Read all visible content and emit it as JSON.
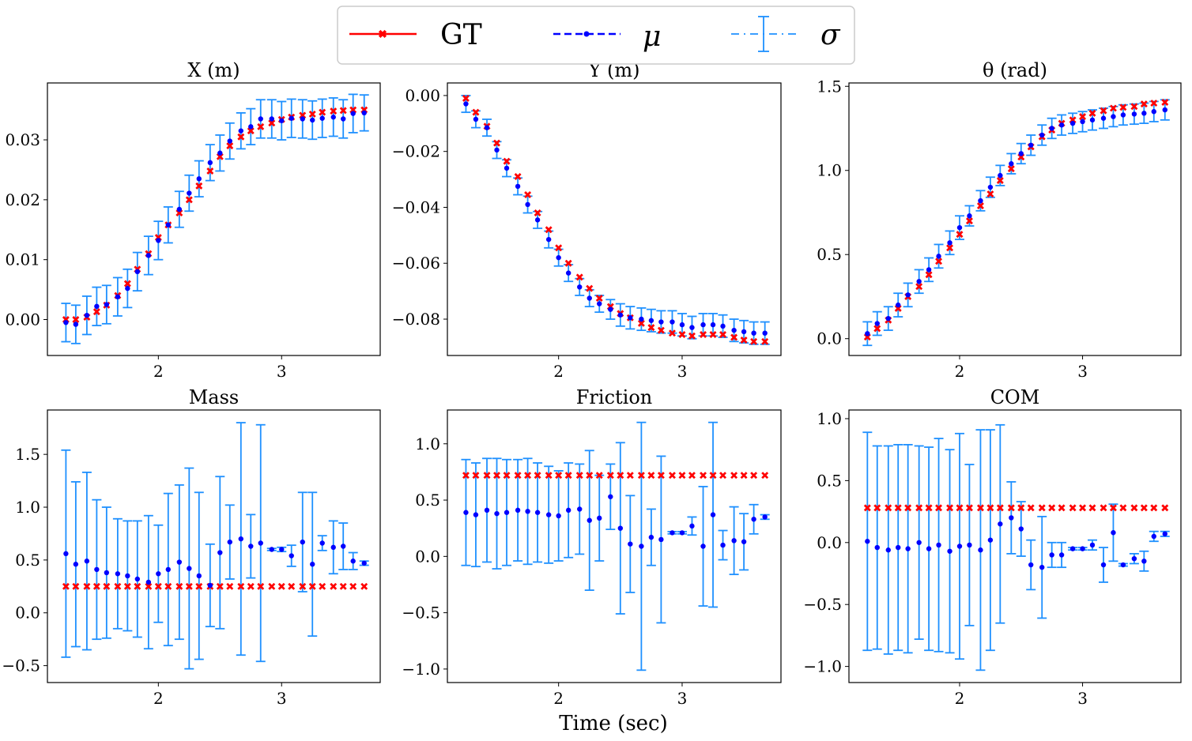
{
  "figure": {
    "xlabel": "Time (sec)"
  },
  "legend": {
    "entries": [
      {
        "label": "GT",
        "color": "#ff0000",
        "style": "solid-x-marker"
      },
      {
        "label": "μ",
        "color": "#0000ff",
        "style": "dashed-dot-marker"
      },
      {
        "label": "σ",
        "color": "#1e90ff",
        "style": "dashdot-errorbar"
      }
    ]
  },
  "chart_data": [
    {
      "type": "errorbar",
      "title": "X (m)",
      "xlim": [
        1.1,
        3.8
      ],
      "ylim": [
        -0.006,
        0.0395
      ],
      "xticks": [
        2,
        3
      ],
      "xtick_labels": [
        "2",
        "3"
      ],
      "yticks": [
        0.0,
        0.01,
        0.02,
        0.03
      ],
      "ytick_labels": [
        "0.00",
        "0.01",
        "0.02",
        "0.03"
      ],
      "x": [
        1.25,
        1.33,
        1.42,
        1.5,
        1.58,
        1.67,
        1.75,
        1.83,
        1.92,
        2.0,
        2.08,
        2.17,
        2.25,
        2.33,
        2.42,
        2.5,
        2.58,
        2.67,
        2.75,
        2.83,
        2.92,
        3.0,
        3.08,
        3.17,
        3.25,
        3.33,
        3.42,
        3.5,
        3.58,
        3.67
      ],
      "gt": [
        0.0,
        0.0,
        0.0004,
        0.0013,
        0.0024,
        0.004,
        0.006,
        0.0084,
        0.011,
        0.0137,
        0.0158,
        0.0178,
        0.02,
        0.0223,
        0.0248,
        0.0272,
        0.029,
        0.0305,
        0.0315,
        0.0322,
        0.0328,
        0.0334,
        0.0338,
        0.0341,
        0.0343,
        0.0346,
        0.0348,
        0.0349,
        0.035,
        0.035
      ],
      "mu": [
        -0.0005,
        -0.0008,
        0.0007,
        0.0022,
        0.0025,
        0.0038,
        0.0052,
        0.008,
        0.0107,
        0.0132,
        0.0158,
        0.0184,
        0.0211,
        0.0235,
        0.0262,
        0.0278,
        0.0298,
        0.0315,
        0.0322,
        0.0335,
        0.0335,
        0.0332,
        0.0336,
        0.0335,
        0.0333,
        0.0336,
        0.0338,
        0.0335,
        0.0344,
        0.0345
      ],
      "sigma": [
        0.0032,
        0.0032,
        0.0032,
        0.0032,
        0.0032,
        0.0032,
        0.0032,
        0.0032,
        0.0032,
        0.0032,
        0.003,
        0.003,
        0.003,
        0.003,
        0.003,
        0.003,
        0.003,
        0.003,
        0.003,
        0.0032,
        0.0032,
        0.0032,
        0.0032,
        0.0032,
        0.0032,
        0.0032,
        0.0032,
        0.0032,
        0.0032,
        0.003
      ]
    },
    {
      "type": "errorbar",
      "title": "Y (m)",
      "xlim": [
        1.1,
        3.8
      ],
      "ylim": [
        -0.093,
        0.0045
      ],
      "xticks": [
        2,
        3
      ],
      "xtick_labels": [
        "2",
        "3"
      ],
      "yticks": [
        0.0,
        -0.02,
        -0.04,
        -0.06,
        -0.08
      ],
      "ytick_labels": [
        "0.00",
        "−0.02",
        "−0.04",
        "−0.06",
        "−0.08"
      ],
      "x": [
        1.25,
        1.33,
        1.42,
        1.5,
        1.58,
        1.67,
        1.75,
        1.83,
        1.92,
        2.0,
        2.08,
        2.17,
        2.25,
        2.33,
        2.42,
        2.5,
        2.58,
        2.67,
        2.75,
        2.83,
        2.92,
        3.0,
        3.08,
        3.17,
        3.25,
        3.33,
        3.42,
        3.5,
        3.58,
        3.67
      ],
      "gt": [
        -0.001,
        -0.006,
        -0.011,
        -0.017,
        -0.0235,
        -0.029,
        -0.0355,
        -0.042,
        -0.048,
        -0.0545,
        -0.06,
        -0.065,
        -0.069,
        -0.0725,
        -0.0755,
        -0.078,
        -0.0795,
        -0.0815,
        -0.083,
        -0.084,
        -0.085,
        -0.0855,
        -0.086,
        -0.0855,
        -0.0855,
        -0.0855,
        -0.0865,
        -0.0875,
        -0.088,
        -0.088
      ],
      "mu": [
        -0.003,
        -0.0085,
        -0.0115,
        -0.0195,
        -0.026,
        -0.0325,
        -0.039,
        -0.0445,
        -0.0515,
        -0.058,
        -0.0635,
        -0.0685,
        -0.0725,
        -0.0745,
        -0.0765,
        -0.0785,
        -0.0795,
        -0.08,
        -0.0805,
        -0.081,
        -0.081,
        -0.082,
        -0.083,
        -0.082,
        -0.082,
        -0.0825,
        -0.084,
        -0.0845,
        -0.085,
        -0.085
      ],
      "sigma": [
        0.003,
        0.003,
        0.003,
        0.003,
        0.003,
        0.003,
        0.003,
        0.003,
        0.003,
        0.003,
        0.003,
        0.003,
        0.003,
        0.003,
        0.0035,
        0.004,
        0.004,
        0.004,
        0.004,
        0.004,
        0.004,
        0.004,
        0.004,
        0.004,
        0.004,
        0.004,
        0.004,
        0.004,
        0.004,
        0.004
      ]
    },
    {
      "type": "errorbar",
      "title": "θ (rad)",
      "xlim": [
        1.1,
        3.8
      ],
      "ylim": [
        -0.1,
        1.52
      ],
      "xticks": [
        2,
        3
      ],
      "xtick_labels": [
        "2",
        "3"
      ],
      "yticks": [
        0.0,
        0.5,
        1.0,
        1.5
      ],
      "ytick_labels": [
        "0.0",
        "0.5",
        "1.0",
        "1.5"
      ],
      "x": [
        1.25,
        1.33,
        1.42,
        1.5,
        1.58,
        1.67,
        1.75,
        1.83,
        1.92,
        2.0,
        2.08,
        2.17,
        2.25,
        2.33,
        2.42,
        2.5,
        2.58,
        2.67,
        2.75,
        2.83,
        2.92,
        3.0,
        3.08,
        3.17,
        3.25,
        3.33,
        3.42,
        3.5,
        3.58,
        3.67
      ],
      "gt": [
        0.01,
        0.06,
        0.11,
        0.18,
        0.25,
        0.31,
        0.38,
        0.46,
        0.54,
        0.62,
        0.7,
        0.79,
        0.86,
        0.94,
        1.01,
        1.08,
        1.14,
        1.2,
        1.24,
        1.28,
        1.3,
        1.32,
        1.34,
        1.355,
        1.37,
        1.375,
        1.38,
        1.395,
        1.4,
        1.405
      ],
      "mu": [
        0.03,
        0.09,
        0.12,
        0.2,
        0.26,
        0.34,
        0.41,
        0.49,
        0.57,
        0.66,
        0.73,
        0.82,
        0.9,
        0.97,
        1.04,
        1.1,
        1.15,
        1.21,
        1.25,
        1.27,
        1.28,
        1.29,
        1.3,
        1.31,
        1.32,
        1.33,
        1.335,
        1.34,
        1.35,
        1.36
      ],
      "sigma": [
        0.07,
        0.07,
        0.07,
        0.07,
        0.07,
        0.07,
        0.07,
        0.07,
        0.07,
        0.07,
        0.06,
        0.06,
        0.06,
        0.06,
        0.06,
        0.06,
        0.06,
        0.06,
        0.06,
        0.06,
        0.06,
        0.06,
        0.06,
        0.06,
        0.06,
        0.06,
        0.06,
        0.06,
        0.06,
        0.06
      ]
    },
    {
      "type": "errorbar",
      "title": "Mass",
      "xlim": [
        1.1,
        3.8
      ],
      "ylim": [
        -0.66,
        1.92
      ],
      "xticks": [
        2,
        3
      ],
      "xtick_labels": [
        "2",
        "3"
      ],
      "yticks": [
        -0.5,
        0.0,
        0.5,
        1.0,
        1.5
      ],
      "ytick_labels": [
        "−0.5",
        "0.0",
        "0.5",
        "1.0",
        "1.5"
      ],
      "x": [
        1.25,
        1.33,
        1.42,
        1.5,
        1.58,
        1.67,
        1.75,
        1.83,
        1.92,
        2.0,
        2.08,
        2.17,
        2.25,
        2.33,
        2.42,
        2.5,
        2.58,
        2.67,
        2.75,
        2.83,
        2.92,
        3.0,
        3.08,
        3.17,
        3.25,
        3.33,
        3.42,
        3.5,
        3.58,
        3.67
      ],
      "gt": [
        0.25,
        0.25,
        0.25,
        0.25,
        0.25,
        0.25,
        0.25,
        0.25,
        0.25,
        0.25,
        0.25,
        0.25,
        0.25,
        0.25,
        0.25,
        0.25,
        0.25,
        0.25,
        0.25,
        0.25,
        0.25,
        0.25,
        0.25,
        0.25,
        0.25,
        0.25,
        0.25,
        0.25,
        0.25,
        0.25
      ],
      "mu": [
        0.56,
        0.46,
        0.49,
        0.41,
        0.38,
        0.37,
        0.35,
        0.32,
        0.29,
        0.37,
        0.41,
        0.48,
        0.42,
        0.35,
        0.26,
        0.57,
        0.67,
        0.7,
        0.63,
        0.66,
        0.6,
        0.6,
        0.54,
        0.67,
        0.46,
        0.66,
        0.62,
        0.63,
        0.49,
        0.47
      ],
      "sigma": [
        0.98,
        0.78,
        0.84,
        0.66,
        0.62,
        0.52,
        0.52,
        0.55,
        0.63,
        0.46,
        0.72,
        0.73,
        0.95,
        0.79,
        0.39,
        0.72,
        0.35,
        1.1,
        0.3,
        1.12,
        0.01,
        0.02,
        0.1,
        0.47,
        0.68,
        0.07,
        0.25,
        0.22,
        0.08,
        0.02
      ]
    },
    {
      "type": "errorbar",
      "title": "Friction",
      "xlim": [
        1.1,
        3.8
      ],
      "ylim": [
        -1.12,
        1.3
      ],
      "xticks": [
        2,
        3
      ],
      "xtick_labels": [
        "2",
        "3"
      ],
      "yticks": [
        -1.0,
        -0.5,
        0.0,
        0.5,
        1.0
      ],
      "ytick_labels": [
        "−1.0",
        "−0.5",
        "0.0",
        "0.5",
        "1.0"
      ],
      "x": [
        1.25,
        1.33,
        1.42,
        1.5,
        1.58,
        1.67,
        1.75,
        1.83,
        1.92,
        2.0,
        2.08,
        2.17,
        2.25,
        2.33,
        2.42,
        2.5,
        2.58,
        2.67,
        2.75,
        2.83,
        2.92,
        3.0,
        3.08,
        3.17,
        3.25,
        3.33,
        3.42,
        3.5,
        3.58,
        3.67
      ],
      "gt": [
        0.72,
        0.72,
        0.72,
        0.72,
        0.72,
        0.72,
        0.72,
        0.72,
        0.72,
        0.72,
        0.72,
        0.72,
        0.72,
        0.72,
        0.72,
        0.72,
        0.72,
        0.72,
        0.72,
        0.72,
        0.72,
        0.72,
        0.72,
        0.72,
        0.72,
        0.72,
        0.72,
        0.72,
        0.72,
        0.72
      ],
      "mu": [
        0.39,
        0.37,
        0.41,
        0.38,
        0.39,
        0.41,
        0.4,
        0.39,
        0.37,
        0.36,
        0.41,
        0.42,
        0.32,
        0.34,
        0.53,
        0.25,
        0.11,
        0.09,
        0.17,
        0.15,
        0.21,
        0.21,
        0.27,
        0.09,
        0.37,
        0.1,
        0.14,
        0.13,
        0.33,
        0.35
      ],
      "sigma": [
        0.47,
        0.46,
        0.46,
        0.49,
        0.47,
        0.45,
        0.47,
        0.44,
        0.43,
        0.4,
        0.42,
        0.4,
        0.62,
        0.38,
        0.29,
        0.76,
        0.43,
        1.1,
        0.25,
        0.74,
        0.01,
        0.01,
        0.08,
        0.53,
        0.82,
        0.13,
        0.3,
        0.25,
        0.13,
        0.02
      ]
    },
    {
      "type": "errorbar",
      "title": "COM",
      "xlim": [
        1.1,
        3.8
      ],
      "ylim": [
        -1.13,
        1.07
      ],
      "xticks": [
        2,
        3
      ],
      "xtick_labels": [
        "2",
        "3"
      ],
      "yticks": [
        -1.0,
        -0.5,
        0.0,
        0.5,
        1.0
      ],
      "ytick_labels": [
        "−1.0",
        "−0.5",
        "0.0",
        "0.5",
        "1.0"
      ],
      "x": [
        1.25,
        1.33,
        1.42,
        1.5,
        1.58,
        1.67,
        1.75,
        1.83,
        1.92,
        2.0,
        2.08,
        2.17,
        2.25,
        2.33,
        2.42,
        2.5,
        2.58,
        2.67,
        2.75,
        2.83,
        2.92,
        3.0,
        3.08,
        3.17,
        3.25,
        3.33,
        3.42,
        3.5,
        3.58,
        3.67
      ],
      "gt": [
        0.28,
        0.28,
        0.28,
        0.28,
        0.28,
        0.28,
        0.28,
        0.28,
        0.28,
        0.28,
        0.28,
        0.28,
        0.28,
        0.28,
        0.28,
        0.28,
        0.28,
        0.28,
        0.28,
        0.28,
        0.28,
        0.28,
        0.28,
        0.28,
        0.28,
        0.28,
        0.28,
        0.28,
        0.28,
        0.28
      ],
      "mu": [
        0.01,
        -0.04,
        -0.06,
        -0.04,
        -0.05,
        0.0,
        -0.05,
        -0.02,
        -0.07,
        -0.03,
        -0.02,
        -0.06,
        0.02,
        0.15,
        0.2,
        0.11,
        -0.18,
        -0.2,
        -0.1,
        -0.1,
        -0.05,
        -0.05,
        -0.02,
        -0.18,
        0.08,
        -0.18,
        -0.13,
        -0.15,
        0.05,
        0.07
      ],
      "sigma": [
        0.88,
        0.82,
        0.84,
        0.83,
        0.84,
        0.78,
        0.82,
        0.86,
        0.82,
        0.91,
        0.65,
        0.97,
        0.89,
        0.8,
        0.29,
        0.22,
        0.2,
        0.41,
        0.1,
        0.1,
        0.01,
        0.01,
        0.04,
        0.14,
        0.23,
        0.01,
        0.04,
        0.08,
        0.04,
        0.02
      ]
    }
  ]
}
